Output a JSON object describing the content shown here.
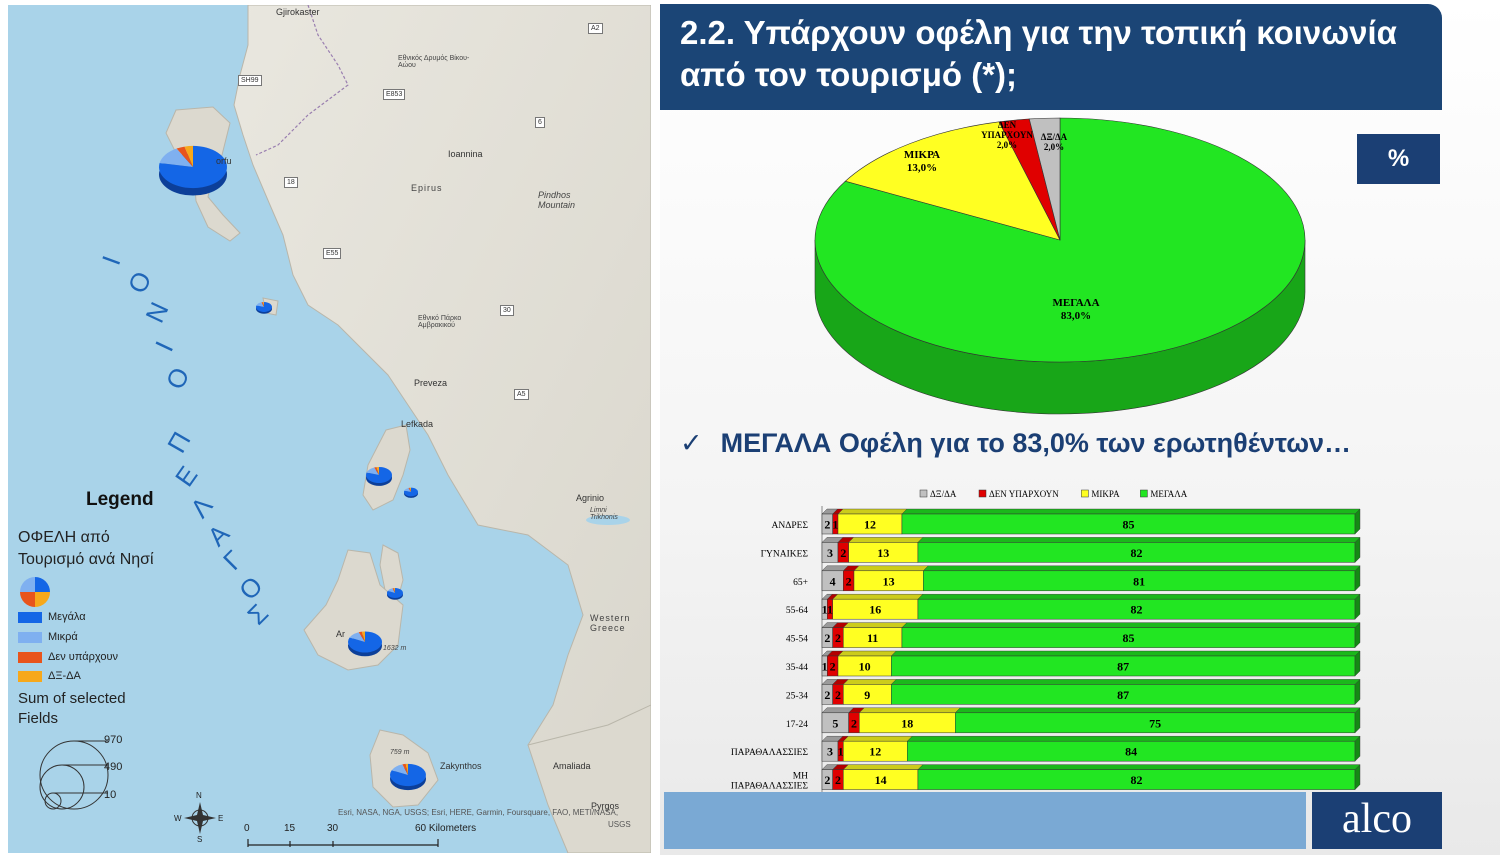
{
  "map": {
    "places": [
      "Gjirokaster",
      "Εθνικός Δρυμός Βίκου-Αώου",
      "Ioannina",
      "Epirus",
      "Pindhos Mountain",
      "Εθνικό Πάρκο Αμβρακικού",
      "Preveza",
      "Lefkada",
      "Agrinio",
      "Limni Trikhonis",
      "Western Greece",
      "Amaliada",
      "Pyrgos",
      "Zakynthos",
      "Argostoli",
      "Corfu"
    ],
    "corfu_label": "orfu",
    "argos_label": "Ar",
    "peaks": [
      "1632 m",
      "759 m"
    ],
    "roads": [
      "A2",
      "SH99",
      "E853",
      "6",
      "18",
      "E55",
      "30",
      "A5"
    ],
    "sea_letters": [
      "Ι",
      "Ο",
      "Ν",
      "Ι",
      "Ο",
      "Π",
      "Ε",
      "Λ",
      "Α",
      "Γ",
      "Ο",
      "Σ"
    ],
    "legend": {
      "title": "Legend",
      "subtitle_1": "ΟΦΕΛΗ από",
      "subtitle_2": "Τουρισμό ανά Νησί",
      "items": [
        {
          "label": "Μεγάλα",
          "color": "#1466e6"
        },
        {
          "label": "Μικρά",
          "color": "#7fb0f0"
        },
        {
          "label": "Δεν υπάρχουν",
          "color": "#e8541c"
        },
        {
          "label": "ΔΞ-ΔΑ",
          "color": "#f7a81b"
        }
      ],
      "sum_1": "Sum of selected",
      "sum_2": "Fields",
      "sizes": [
        "970",
        "490",
        "10"
      ]
    },
    "compass": {
      "n": "N",
      "s": "S",
      "e": "E",
      "w": "W"
    },
    "scale": [
      "0",
      "15",
      "30",
      "60 Kilometers"
    ],
    "attribution_1": "Esri, NASA, NGA, USGS; Esri, HERE, Garmin, Foursquare, FAO, METI/NASA,",
    "attribution_2": "USGS"
  },
  "header": {
    "title": "2.2. Υπάρχουν οφέλη για την τοπική κοινωνία από τον τουρισμό (*);",
    "badge": "%"
  },
  "headline": {
    "check": "✓",
    "text": "ΜΕΓΑΛΑ Οφέλη για το 83,0% των ερωτηθέντων…"
  },
  "logo": "alco",
  "chart_data": [
    {
      "type": "pie",
      "labels": [
        "ΜΕΓΑΛΑ",
        "ΜΙΚΡΑ",
        "ΔΕΝ ΥΠΑΡΧΟΥΝ",
        "ΔΞ/ΔΑ"
      ],
      "values": [
        83.0,
        13.0,
        2.0,
        2.0
      ],
      "value_labels": [
        "83,0%",
        "13,0%",
        "2,0%",
        "2,0%"
      ],
      "colors": [
        "#22e622",
        "#ffff22",
        "#e00000",
        "#c0c0c0"
      ]
    },
    {
      "type": "bar",
      "orientation": "horizontal",
      "stacked": true,
      "categories": [
        "ΑΝΔΡΕΣ",
        "ΓΥΝΑΙΚΕΣ",
        "65+",
        "55-64",
        "45-54",
        "35-44",
        "25-34",
        "17-24",
        "ΠΑΡΑΘΑΛΑΣΣΙΕΣ",
        "ΜΗ ΠΑΡΑΘΑΛΑΣΣΙΕΣ"
      ],
      "category_lines": [
        [
          "ΑΝΔΡΕΣ"
        ],
        [
          "ΓΥΝΑΙΚΕΣ"
        ],
        [
          "65+"
        ],
        [
          "55-64"
        ],
        [
          "45-54"
        ],
        [
          "35-44"
        ],
        [
          "25-34"
        ],
        [
          "17-24"
        ],
        [
          "ΠΑΡΑΘΑΛΑΣΣΙΕΣ"
        ],
        [
          "ΜΗ",
          "ΠΑΡΑΘΑΛΑΣΣΙΕΣ"
        ]
      ],
      "series": [
        {
          "name": "ΔΞ/ΔΑ",
          "color": "#c0c0c0",
          "values": [
            2,
            3,
            4,
            1,
            2,
            1,
            2,
            5,
            3,
            2
          ]
        },
        {
          "name": "ΔΕΝ ΥΠΑΡΧΟΥΝ",
          "color": "#e00000",
          "values": [
            1,
            2,
            2,
            1,
            2,
            2,
            2,
            2,
            1,
            2
          ]
        },
        {
          "name": "ΜΙΚΡΑ",
          "color": "#ffff22",
          "values": [
            12,
            13,
            13,
            16,
            11,
            10,
            9,
            18,
            12,
            14
          ]
        },
        {
          "name": "ΜΕΓΑΛΑ",
          "color": "#22e622",
          "values": [
            85,
            82,
            81,
            82,
            85,
            87,
            87,
            75,
            84,
            82
          ]
        }
      ],
      "xlim": [
        0,
        100
      ],
      "legend": "top"
    }
  ]
}
